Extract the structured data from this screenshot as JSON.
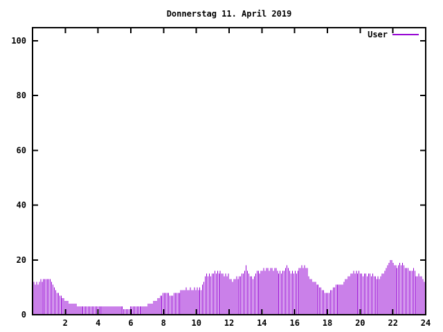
{
  "window": {
    "background": "#ffffff",
    "foreground": "#000000"
  },
  "chart": {
    "title": "Donnerstag 11. April 2019",
    "legend": {
      "label": "User"
    }
  },
  "chart_data": {
    "type": "bar",
    "title": "Donnerstag 11. April 2019",
    "xlabel": "",
    "ylabel": "",
    "x_unit": "hour_of_day",
    "sample_interval_minutes": 5,
    "xlim": [
      0,
      24
    ],
    "ylim": [
      0,
      105
    ],
    "xticks": [
      2,
      4,
      6,
      8,
      10,
      12,
      14,
      16,
      18,
      20,
      22,
      24
    ],
    "yticks": [
      0,
      20,
      40,
      60,
      80,
      100
    ],
    "grid": false,
    "legend_position": "top-right-inside",
    "axis_color": "#000000",
    "series": [
      {
        "name": "User",
        "color": "#9400d3",
        "values": [
          12,
          11,
          12,
          11,
          12,
          13,
          12,
          13,
          13,
          13,
          13,
          13,
          13,
          12,
          11,
          10,
          9,
          8,
          8,
          7,
          7,
          6,
          6,
          5,
          5,
          5,
          4,
          4,
          4,
          4,
          4,
          4,
          3,
          3,
          3,
          3,
          3,
          3,
          3,
          3,
          3,
          3,
          3,
          3,
          3,
          3,
          3,
          3,
          3,
          3,
          3,
          3,
          3,
          3,
          3,
          3,
          3,
          3,
          3,
          3,
          3,
          3,
          3,
          3,
          3,
          3,
          2,
          2,
          2,
          2,
          2,
          3,
          3,
          3,
          3,
          3,
          3,
          3,
          3,
          3,
          3,
          3,
          3,
          3,
          4,
          4,
          4,
          4,
          5,
          5,
          5,
          6,
          6,
          7,
          7,
          8,
          8,
          8,
          8,
          8,
          7,
          7,
          7,
          8,
          8,
          8,
          8,
          8,
          9,
          9,
          9,
          9,
          10,
          9,
          9,
          10,
          9,
          9,
          10,
          9,
          10,
          9,
          10,
          9,
          11,
          12,
          14,
          15,
          14,
          15,
          14,
          15,
          15,
          16,
          15,
          16,
          15,
          16,
          15,
          15,
          14,
          15,
          14,
          15,
          13,
          13,
          12,
          13,
          13,
          14,
          13,
          14,
          14,
          15,
          15,
          16,
          18,
          16,
          15,
          14,
          14,
          13,
          14,
          15,
          16,
          16,
          15,
          16,
          16,
          17,
          16,
          17,
          17,
          16,
          17,
          17,
          16,
          17,
          17,
          16,
          15,
          16,
          15,
          16,
          16,
          17,
          18,
          17,
          16,
          15,
          16,
          15,
          16,
          15,
          16,
          17,
          17,
          18,
          17,
          18,
          17,
          17,
          14,
          13,
          13,
          12,
          12,
          12,
          11,
          11,
          10,
          10,
          9,
          9,
          8,
          8,
          8,
          8,
          9,
          9,
          10,
          10,
          11,
          11,
          11,
          11,
          11,
          11,
          12,
          13,
          13,
          14,
          14,
          15,
          15,
          16,
          15,
          16,
          15,
          16,
          15,
          15,
          14,
          15,
          15,
          14,
          15,
          15,
          14,
          15,
          14,
          14,
          13,
          14,
          13,
          14,
          15,
          15,
          16,
          17,
          18,
          19,
          20,
          20,
          19,
          18,
          18,
          17,
          18,
          19,
          18,
          19,
          18,
          17,
          17,
          17,
          16,
          16,
          16,
          17,
          16,
          14,
          14,
          15,
          14,
          14,
          13,
          12
        ]
      }
    ]
  }
}
